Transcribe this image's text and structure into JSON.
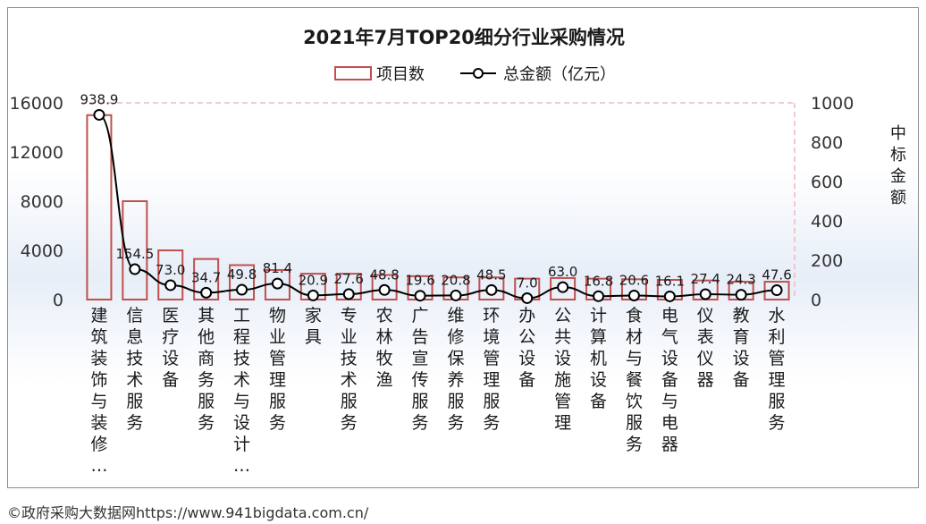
{
  "footer": "©政府采购大数据网https://www.941bigdata.com.cn/",
  "chart_data": {
    "type": "bar+line",
    "title": "2021年7月TOP20细分行业采购情况",
    "legend": [
      "项目数",
      "总金额（亿元）"
    ],
    "legend_position": "top-center",
    "y2label": "中标金额",
    "categories": [
      "建筑装饰与装修…",
      "信息技术服务",
      "医疗设备",
      "其他商务服务",
      "工程技术与设计…",
      "物业管理服务",
      "家具",
      "专业技术服务",
      "农林牧渔",
      "广告宣传服务",
      "维修保养服务",
      "环境管理服务",
      "办公设备",
      "公共设施管理",
      "计算机设备",
      "食材与餐饮服务",
      "电气设备与电器",
      "仪表仪器",
      "教育设备",
      "水利管理服务"
    ],
    "series": [
      {
        "name": "项目数",
        "type": "bar",
        "axis": "left",
        "values": [
          15000,
          8000,
          4000,
          3300,
          2800,
          2400,
          2100,
          2100,
          2000,
          1900,
          1800,
          1800,
          1700,
          1750,
          1700,
          1650,
          1600,
          1550,
          1450,
          1450
        ]
      },
      {
        "name": "总金额（亿元）",
        "type": "line",
        "axis": "right",
        "values": [
          938.9,
          154.5,
          73.0,
          34.7,
          49.8,
          81.4,
          20.9,
          27.6,
          48.8,
          19.6,
          20.8,
          48.5,
          7.0,
          63.0,
          16.8,
          20.6,
          16.1,
          27.4,
          24.3,
          47.6
        ],
        "labels": [
          "938.9",
          "154.5",
          "73.0",
          "34.7",
          "49.8",
          "81.4",
          "20.9",
          "27.6",
          "48.8",
          "19.6",
          "20.8",
          "48.5",
          "7.0",
          "63.0",
          "16.8",
          "20.6",
          "16.1",
          "27.4",
          "24.3",
          "47.6"
        ]
      }
    ],
    "y1_ticks": [
      "0",
      "4000",
      "8000",
      "12000",
      "16000"
    ],
    "y1lim": [
      0,
      16000
    ],
    "y2_ticks": [
      "0",
      "200",
      "400",
      "600",
      "800",
      "1000"
    ],
    "y2lim": [
      0,
      1000
    ],
    "grid": "dashed-right-and-top-border",
    "colors": {
      "bar_edge": "#c0504d",
      "line": "#000000",
      "marker_fill": "#ffffff",
      "axis_text": "#333333",
      "grid_dash": "#f2b8b8"
    }
  }
}
